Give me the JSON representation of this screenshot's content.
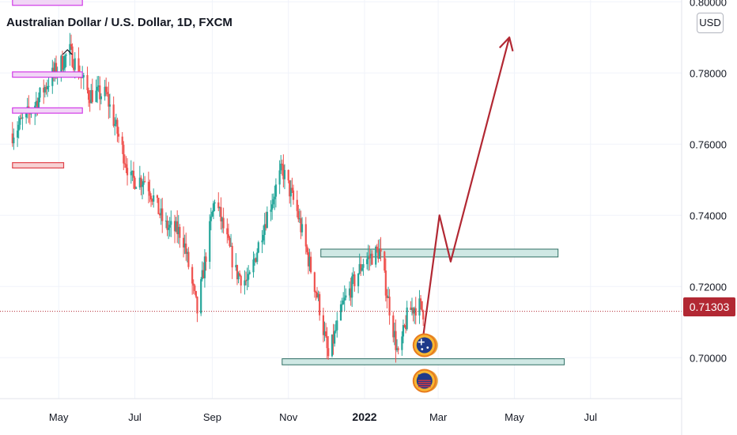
{
  "header": {
    "title": "Australian Dollar / U.S. Dollar, 1D, FXCM",
    "currency_button": "USD",
    "last_price": "0.71303"
  },
  "colors": {
    "up": "#26a69a",
    "down": "#ef5350",
    "forecast_arrow": "#b22833",
    "zone_fill": "#cfe8e4",
    "zone_stroke": "#2f6e63",
    "magenta_box": "#d23be8",
    "red_box": "#e0434b",
    "price_tag": "#b22833",
    "grid": "#f0f3fa"
  },
  "chart_data": {
    "type": "candlestick",
    "symbol": "AUDUSD",
    "timeframe": "1D",
    "y_axis": {
      "ticks": [
        "0.80000",
        "0.78000",
        "0.76000",
        "0.74000",
        "0.72000",
        "0.70000"
      ],
      "ylim": [
        0.6885,
        0.8005
      ],
      "position": "right"
    },
    "x_axis": {
      "ticks": [
        "May",
        "Jul",
        "Sep",
        "Nov",
        "2022",
        "Mar",
        "May",
        "Jul"
      ],
      "bold_ticks": [
        "2022"
      ]
    },
    "last_price": 0.71303,
    "price_path": [
      {
        "date": "2021-03-25",
        "price": 0.763
      },
      {
        "date": "2021-04-10",
        "price": 0.77
      },
      {
        "date": "2021-04-25",
        "price": 0.779
      },
      {
        "date": "2021-05-10",
        "price": 0.786
      },
      {
        "date": "2021-05-25",
        "price": 0.774
      },
      {
        "date": "2021-06-08",
        "price": 0.774
      },
      {
        "date": "2021-06-18",
        "price": 0.762
      },
      {
        "date": "2021-06-28",
        "price": 0.75
      },
      {
        "date": "2021-07-10",
        "price": 0.75
      },
      {
        "date": "2021-07-25",
        "price": 0.737
      },
      {
        "date": "2021-08-08",
        "price": 0.735
      },
      {
        "date": "2021-08-20",
        "price": 0.713
      },
      {
        "date": "2021-09-03",
        "price": 0.745
      },
      {
        "date": "2021-09-20",
        "price": 0.724
      },
      {
        "date": "2021-09-30",
        "price": 0.721
      },
      {
        "date": "2021-10-12",
        "price": 0.737
      },
      {
        "date": "2021-10-27",
        "price": 0.753
      },
      {
        "date": "2021-11-08",
        "price": 0.741
      },
      {
        "date": "2021-11-25",
        "price": 0.716
      },
      {
        "date": "2021-12-03",
        "price": 0.7
      },
      {
        "date": "2021-12-15",
        "price": 0.715
      },
      {
        "date": "2021-12-31",
        "price": 0.727
      },
      {
        "date": "2022-01-13",
        "price": 0.73
      },
      {
        "date": "2022-01-28",
        "price": 0.7
      },
      {
        "date": "2022-02-05",
        "price": 0.713
      },
      {
        "date": "2022-02-13",
        "price": 0.715
      },
      {
        "date": "2022-02-17",
        "price": 0.713
      }
    ],
    "zones": [
      {
        "kind": "resistance",
        "from": "2021-11-27",
        "to": "2022-06-05",
        "low": 0.7283,
        "high": 0.7305
      },
      {
        "kind": "support",
        "from": "2021-10-27",
        "to": "2022-06-10",
        "low": 0.698,
        "high": 0.6997
      }
    ],
    "marked_boxes": [
      {
        "color": "magenta",
        "from": "2021-03-25",
        "to": "2021-05-20",
        "low": 0.799,
        "high": 0.8015
      },
      {
        "color": "magenta",
        "from": "2021-03-25",
        "to": "2021-05-20",
        "low": 0.7788,
        "high": 0.7803
      },
      {
        "color": "magenta",
        "from": "2021-03-25",
        "to": "2021-05-20",
        "low": 0.7687,
        "high": 0.7702
      },
      {
        "color": "red",
        "from": "2021-03-25",
        "to": "2021-05-05",
        "low": 0.7533,
        "high": 0.7548
      }
    ],
    "forecast_path": [
      {
        "date": "2022-02-17",
        "price": 0.706
      },
      {
        "date": "2022-03-02",
        "price": 0.74
      },
      {
        "date": "2022-03-11",
        "price": 0.727
      },
      {
        "date": "2022-04-27",
        "price": 0.79
      }
    ],
    "event_icons": [
      {
        "name": "australia-flag-icon",
        "date": "2022-02-18",
        "price": 0.7035
      },
      {
        "name": "us-flag-icon",
        "date": "2022-02-18",
        "price": 0.6935
      }
    ]
  }
}
